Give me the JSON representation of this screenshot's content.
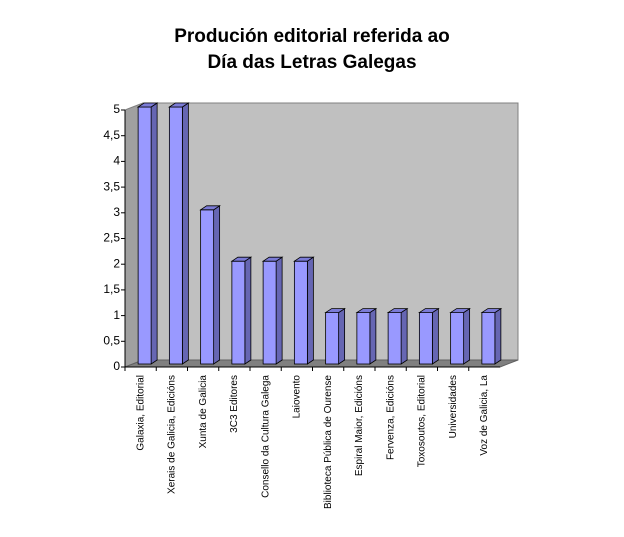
{
  "chart_data": {
    "type": "bar3d",
    "title": [
      "Produción editorial referida ao",
      "Día das Letras Galegas"
    ],
    "categories": [
      "Galaxia, Editorial",
      "Xerais de Galicia, Edicións",
      "Xunta de Galicia",
      "3C3 Editores",
      "Consello da Cultura Galega",
      "Laiovento",
      "Biblioteca Pública de Ourense",
      "Espiral Maior, Edicións",
      "Fervenza, Edicións",
      "Toxosoutos, Editorial",
      "Universidades",
      "Voz de Galicia, La"
    ],
    "values": [
      5,
      5,
      3,
      2,
      2,
      2,
      1,
      1,
      1,
      1,
      1,
      1
    ],
    "color": "#9999ff",
    "ylim": [
      0,
      5
    ],
    "yticks": [
      0,
      {
        "value": 0.5,
        "label": "0,5"
      },
      1,
      {
        "value": 1.5,
        "label": "1,5"
      },
      2,
      {
        "value": 2.5,
        "label": "2,5"
      },
      3,
      {
        "value": 3.5,
        "label": "3,5"
      },
      4,
      {
        "value": 4.5,
        "label": "4,5"
      },
      5
    ]
  }
}
